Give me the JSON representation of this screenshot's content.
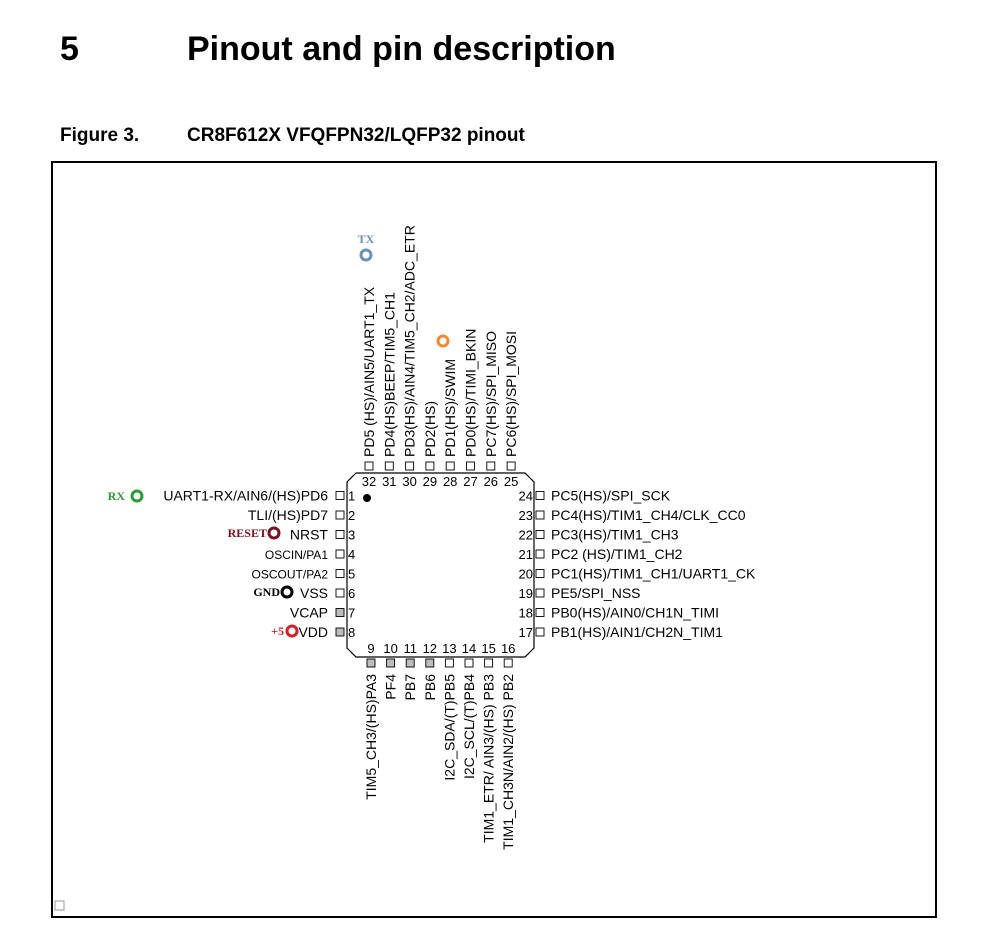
{
  "section": {
    "number": "5",
    "title": "Pinout and pin description"
  },
  "figure": {
    "label": "Figure 3.",
    "title": "CR8F612X VFQFPN32/LQFP32 pinout"
  },
  "colors": {
    "rx": "#2a9a3c",
    "tx": "#6b90bd",
    "reset": "#7a1020",
    "gnd": "#000000",
    "vdd": "#d42028",
    "swim": "#ee8a30",
    "pad_gray": "#bdbdbd"
  },
  "pins_left": [
    {
      "num": "1",
      "label": "UART1-RX/AIN6/(HS)PD6",
      "pad": "white"
    },
    {
      "num": "2",
      "label": "TLI/(HS)PD7",
      "pad": "white"
    },
    {
      "num": "3",
      "label": "NRST",
      "pad": "white"
    },
    {
      "num": "4",
      "label": "OSCIN/PA1",
      "pad": "white"
    },
    {
      "num": "5",
      "label": "OSCOUT/PA2",
      "pad": "white"
    },
    {
      "num": "6",
      "label": "VSS",
      "pad": "white"
    },
    {
      "num": "7",
      "label": "VCAP",
      "pad": "gray"
    },
    {
      "num": "8",
      "label": "VDD",
      "pad": "gray"
    }
  ],
  "pins_right": [
    {
      "num": "24",
      "label": "PC5(HS)/SPI_SCK"
    },
    {
      "num": "23",
      "label": "PC4(HS)/TIM1_CH4/CLK_CC0"
    },
    {
      "num": "22",
      "label": "PC3(HS)/TIM1_CH3"
    },
    {
      "num": "21",
      "label": "PC2 (HS)/TIM1_CH2"
    },
    {
      "num": "20",
      "label": "PC1(HS)/TIM1_CH1/UART1_CK"
    },
    {
      "num": "19",
      "label": "PE5/SPI_NSS"
    },
    {
      "num": "18",
      "label": "PB0(HS)/AIN0/CH1N_TIMI"
    },
    {
      "num": "17",
      "label": "PB1(HS)/AIN1/CH2N_TIM1"
    }
  ],
  "pins_top": [
    {
      "num": "32",
      "label": "PD5 (HS)/AIN5/UART1_TX"
    },
    {
      "num": "31",
      "label": "PD4(HS)BEEP/TIM5_CH1"
    },
    {
      "num": "30",
      "label": "PD3(HS)/AIN4/TIM5_CH2/ADC_ETR"
    },
    {
      "num": "29",
      "label": "PD2(HS)"
    },
    {
      "num": "28",
      "label": "PD1(HS)/SWIM"
    },
    {
      "num": "27",
      "label": "PD0(HS)/TIMI_BKIN"
    },
    {
      "num": "26",
      "label": "PC7(HS)/SPI_MISO"
    },
    {
      "num": "25",
      "label": "PC6(HS)/SPI_MOSI"
    }
  ],
  "pins_bottom": [
    {
      "num": "9",
      "label": "TIM5_CH3/(HS)PA3",
      "pad": "gray"
    },
    {
      "num": "10",
      "label": "PF4",
      "pad": "gray"
    },
    {
      "num": "11",
      "label": "PB7",
      "pad": "gray"
    },
    {
      "num": "12",
      "label": "PB6",
      "pad": "gray"
    },
    {
      "num": "13",
      "label": "I2C_SDA/(T)PB5",
      "pad": "white"
    },
    {
      "num": "14",
      "label": "I2C_SCL/(T)PB4",
      "pad": "white"
    },
    {
      "num": "15",
      "label": "TIM1_ETR/ AIN3/(HS) PB3",
      "pad": "white"
    },
    {
      "num": "16",
      "label": "TIM1_CH3N/AIN2/(HS) PB2",
      "pad": "white"
    }
  ],
  "markers": {
    "rx": "RX",
    "tx": "TX",
    "reset": "RESET",
    "gnd": "GND",
    "vdd": "+5"
  }
}
